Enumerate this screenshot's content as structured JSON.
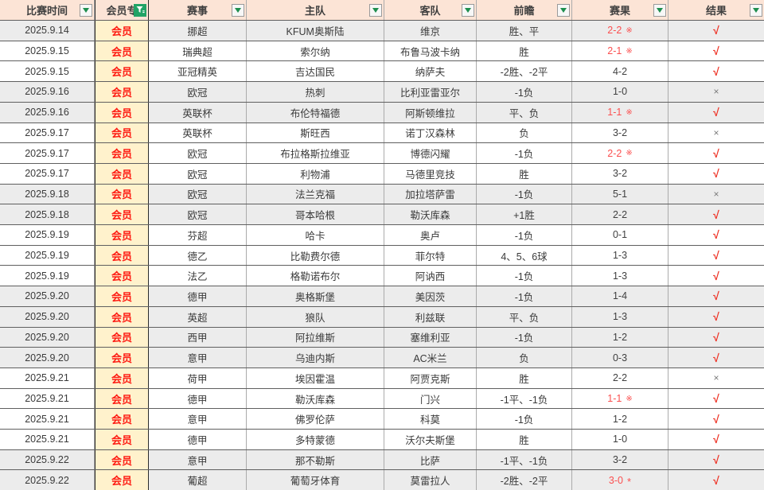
{
  "header": {
    "columns": [
      {
        "label": "比赛时间",
        "filter": "dropdown"
      },
      {
        "label": "会员专",
        "filter": "active"
      },
      {
        "label": "赛事",
        "filter": "dropdown"
      },
      {
        "label": "主队",
        "filter": "dropdown"
      },
      {
        "label": "客队",
        "filter": "dropdown"
      },
      {
        "label": "前瞻",
        "filter": "dropdown"
      },
      {
        "label": "赛果",
        "filter": "dropdown"
      },
      {
        "label": "结果",
        "filter": "dropdown"
      }
    ]
  },
  "rows": [
    {
      "date": "2025.9.14",
      "member": "会员",
      "league": "挪超",
      "home": "KFUM奥斯陆",
      "away": "维京",
      "preview": "胜、平",
      "score": "2-2",
      "mark": "※",
      "score_red": true,
      "result": "√",
      "band": "gray"
    },
    {
      "date": "2025.9.15",
      "member": "会员",
      "league": "瑞典超",
      "home": "索尔纳",
      "away": "布鲁马波卡纳",
      "preview": "胜",
      "score": "2-1",
      "mark": "※",
      "score_red": true,
      "result": "√",
      "band": "white"
    },
    {
      "date": "2025.9.15",
      "member": "会员",
      "league": "亚冠精英",
      "home": "吉达国民",
      "away": "纳萨夫",
      "preview": "-2胜、-2平",
      "score": "4-2",
      "mark": "",
      "score_red": false,
      "result": "√",
      "band": "white"
    },
    {
      "date": "2025.9.16",
      "member": "会员",
      "league": "欧冠",
      "home": "热刺",
      "away": "比利亚雷亚尔",
      "preview": "-1负",
      "score": "1-0",
      "mark": "",
      "score_red": false,
      "result": "×",
      "band": "gray"
    },
    {
      "date": "2025.9.16",
      "member": "会员",
      "league": "英联杯",
      "home": "布伦特福德",
      "away": "阿斯顿维拉",
      "preview": "平、负",
      "score": "1-1",
      "mark": "※",
      "score_red": true,
      "result": "√",
      "band": "gray"
    },
    {
      "date": "2025.9.17",
      "member": "会员",
      "league": "英联杯",
      "home": "斯旺西",
      "away": "诺丁汉森林",
      "preview": "负",
      "score": "3-2",
      "mark": "",
      "score_red": false,
      "result": "×",
      "band": "white"
    },
    {
      "date": "2025.9.17",
      "member": "会员",
      "league": "欧冠",
      "home": "布拉格斯拉维亚",
      "away": "博德闪耀",
      "preview": "-1负",
      "score": "2-2",
      "mark": "※",
      "score_red": true,
      "result": "√",
      "band": "white"
    },
    {
      "date": "2025.9.17",
      "member": "会员",
      "league": "欧冠",
      "home": "利物浦",
      "away": "马德里竞技",
      "preview": "胜",
      "score": "3-2",
      "mark": "",
      "score_red": false,
      "result": "√",
      "band": "white"
    },
    {
      "date": "2025.9.18",
      "member": "会员",
      "league": "欧冠",
      "home": "法兰克福",
      "away": "加拉塔萨雷",
      "preview": "-1负",
      "score": "5-1",
      "mark": "",
      "score_red": false,
      "result": "×",
      "band": "gray"
    },
    {
      "date": "2025.9.18",
      "member": "会员",
      "league": "欧冠",
      "home": "哥本哈根",
      "away": "勒沃库森",
      "preview": "+1胜",
      "score": "2-2",
      "mark": "",
      "score_red": false,
      "result": "√",
      "band": "gray"
    },
    {
      "date": "2025.9.19",
      "member": "会员",
      "league": "芬超",
      "home": "哈卡",
      "away": "奥卢",
      "preview": "-1负",
      "score": "0-1",
      "mark": "",
      "score_red": false,
      "result": "√",
      "band": "white"
    },
    {
      "date": "2025.9.19",
      "member": "会员",
      "league": "德乙",
      "home": "比勒费尔德",
      "away": "菲尔特",
      "preview": "4、5、6球",
      "score": "1-3",
      "mark": "",
      "score_red": false,
      "result": "√",
      "band": "white"
    },
    {
      "date": "2025.9.19",
      "member": "会员",
      "league": "法乙",
      "home": "格勒诺布尔",
      "away": "阿讷西",
      "preview": "-1负",
      "score": "1-3",
      "mark": "",
      "score_red": false,
      "result": "√",
      "band": "white"
    },
    {
      "date": "2025.9.20",
      "member": "会员",
      "league": "德甲",
      "home": "奥格斯堡",
      "away": "美因茨",
      "preview": "-1负",
      "score": "1-4",
      "mark": "",
      "score_red": false,
      "result": "√",
      "band": "gray"
    },
    {
      "date": "2025.9.20",
      "member": "会员",
      "league": "英超",
      "home": "狼队",
      "away": "利兹联",
      "preview": "平、负",
      "score": "1-3",
      "mark": "",
      "score_red": false,
      "result": "√",
      "band": "gray"
    },
    {
      "date": "2025.9.20",
      "member": "会员",
      "league": "西甲",
      "home": "阿拉维斯",
      "away": "塞维利亚",
      "preview": "-1负",
      "score": "1-2",
      "mark": "",
      "score_red": false,
      "result": "√",
      "band": "gray"
    },
    {
      "date": "2025.9.20",
      "member": "会员",
      "league": "意甲",
      "home": "乌迪内斯",
      "away": "AC米兰",
      "preview": "负",
      "score": "0-3",
      "mark": "",
      "score_red": false,
      "result": "√",
      "band": "gray"
    },
    {
      "date": "2025.9.21",
      "member": "会员",
      "league": "荷甲",
      "home": "埃因霍温",
      "away": "阿贾克斯",
      "preview": "胜",
      "score": "2-2",
      "mark": "",
      "score_red": false,
      "result": "×",
      "band": "white"
    },
    {
      "date": "2025.9.21",
      "member": "会员",
      "league": "德甲",
      "home": "勒沃库森",
      "away": "门兴",
      "preview": "-1平、-1负",
      "score": "1-1",
      "mark": "※",
      "score_red": true,
      "result": "√",
      "band": "white"
    },
    {
      "date": "2025.9.21",
      "member": "会员",
      "league": "意甲",
      "home": "佛罗伦萨",
      "away": "科莫",
      "preview": "-1负",
      "score": "1-2",
      "mark": "",
      "score_red": false,
      "result": "√",
      "band": "white"
    },
    {
      "date": "2025.9.21",
      "member": "会员",
      "league": "德甲",
      "home": "多特蒙德",
      "away": "沃尔夫斯堡",
      "preview": "胜",
      "score": "1-0",
      "mark": "",
      "score_red": false,
      "result": "√",
      "band": "white"
    },
    {
      "date": "2025.9.22",
      "member": "会员",
      "league": "意甲",
      "home": "那不勒斯",
      "away": "比萨",
      "preview": "-1平、-1负",
      "score": "3-2",
      "mark": "",
      "score_red": false,
      "result": "√",
      "band": "gray"
    },
    {
      "date": "2025.9.22",
      "member": "会员",
      "league": "葡超",
      "home": "葡萄牙体育",
      "away": "莫雷拉人",
      "preview": "-2胜、-2平",
      "score": "3-0",
      "mark": "*",
      "score_red": true,
      "result": "√",
      "band": "gray"
    }
  ],
  "colors": {
    "header_bg": "#fce4d6",
    "member_bg": "#fff2cc",
    "member_text": "#fe1b12",
    "band_gray": "#ececec",
    "score_red": "#fb4f4f",
    "check_red": "#ee3124",
    "cross_gray": "#7a7a7a",
    "filter_green": "#21a366"
  }
}
